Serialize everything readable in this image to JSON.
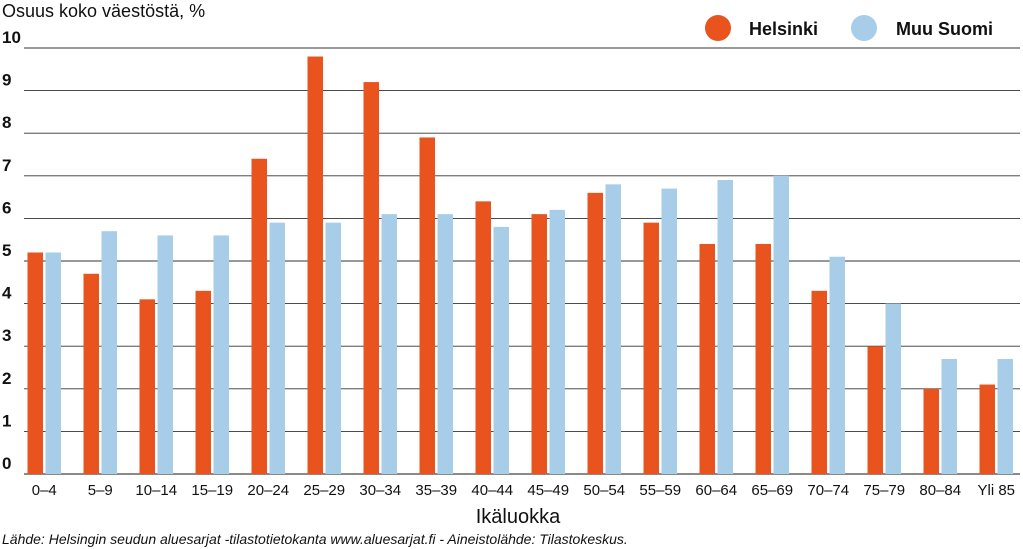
{
  "chart_data": {
    "type": "bar",
    "ylabel": "Osuus koko väestöstä, %",
    "xlabel": "Ikäluokka",
    "ylim": [
      0,
      10
    ],
    "yticks": [
      0,
      1,
      2,
      3,
      4,
      5,
      6,
      7,
      8,
      9,
      10
    ],
    "grid": true,
    "legend_position": "top-right",
    "categories": [
      "0–4",
      "5–9",
      "10–14",
      "15–19",
      "20–24",
      "25–29",
      "30–34",
      "35–39",
      "40–44",
      "45–49",
      "50–54",
      "55–59",
      "60–64",
      "65–69",
      "70–74",
      "75–79",
      "80–84",
      "Yli 85"
    ],
    "series": [
      {
        "name": "Helsinki",
        "color": "#e8531e",
        "values": [
          5.2,
          4.7,
          4.1,
          4.3,
          7.4,
          9.8,
          9.2,
          7.9,
          6.4,
          6.1,
          6.6,
          5.9,
          5.4,
          5.4,
          4.3,
          3.0,
          2.0,
          2.1
        ]
      },
      {
        "name": "Muu Suomi",
        "color": "#a8cde8",
        "values": [
          5.2,
          5.7,
          5.6,
          5.6,
          5.9,
          5.9,
          6.1,
          6.1,
          5.8,
          6.2,
          6.8,
          6.7,
          6.9,
          7.0,
          5.1,
          4.0,
          2.7,
          2.7
        ]
      }
    ],
    "source": "Lähde: Helsingin seudun aluesarjat -tilastotietokanta www.aluesarjat.fi - Aineistolähde: Tilastokeskus."
  }
}
